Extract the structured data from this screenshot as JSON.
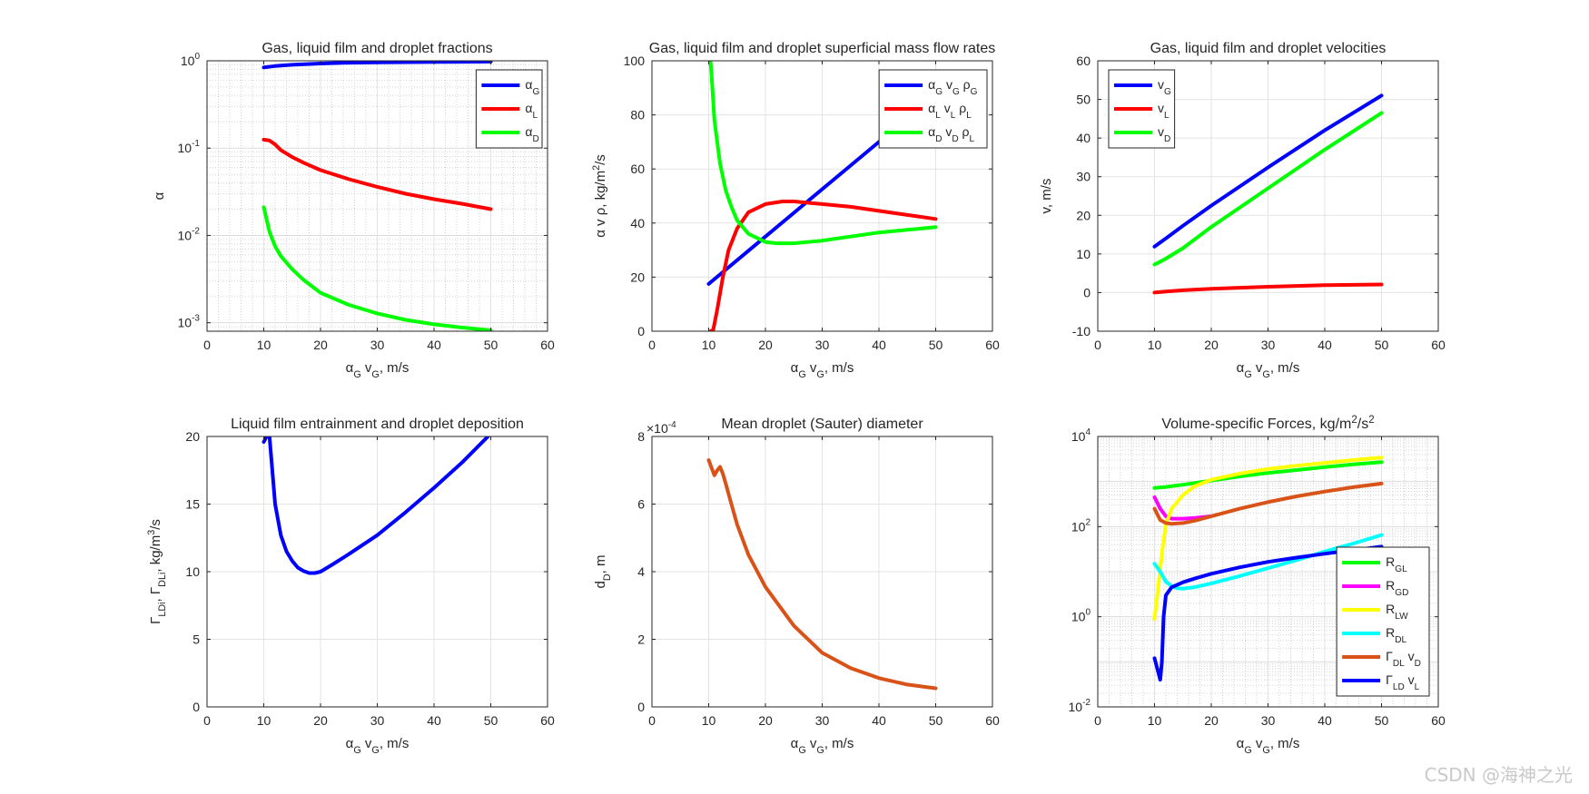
{
  "figure": {
    "watermark": "CSDN @海神之光"
  },
  "chart_data": [
    {
      "type": "line",
      "title": [
        {
          "t": "Gas, liquid film and droplet fractions"
        }
      ],
      "xlabel": [
        {
          "t": "α"
        },
        {
          "t": "G",
          "s": "sub"
        },
        {
          "t": " v"
        },
        {
          "t": "G",
          "s": "sub"
        },
        {
          "t": ", m/s"
        }
      ],
      "ylabel": [
        {
          "t": "α"
        }
      ],
      "xlim": [
        0,
        60
      ],
      "xticks": [
        0,
        10,
        20,
        30,
        40,
        50,
        60
      ],
      "ylim": [
        0.0008,
        1
      ],
      "yscale": "log",
      "yticks": [
        [
          0.001,
          "10",
          "-3"
        ],
        [
          0.01,
          "10",
          "-2"
        ],
        [
          0.1,
          "10",
          "-1"
        ],
        [
          1,
          "10",
          "0"
        ]
      ],
      "grid": "log-minor",
      "legend_position": "top-right",
      "series": [
        {
          "label": [
            {
              "t": "α"
            },
            {
              "t": "G",
              "s": "sub"
            }
          ],
          "color": "#0000ff",
          "x": [
            10,
            12,
            15,
            20,
            25,
            30,
            35,
            40,
            45,
            50
          ],
          "y": [
            0.84,
            0.87,
            0.9,
            0.93,
            0.95,
            0.96,
            0.965,
            0.97,
            0.975,
            0.978
          ]
        },
        {
          "label": [
            {
              "t": "α"
            },
            {
              "t": "L",
              "s": "sub"
            }
          ],
          "color": "#ff0000",
          "x": [
            10,
            11,
            12,
            13,
            15,
            17,
            20,
            25,
            30,
            35,
            40,
            45,
            50
          ],
          "y": [
            0.125,
            0.122,
            0.11,
            0.095,
            0.079,
            0.068,
            0.056,
            0.044,
            0.036,
            0.03,
            0.026,
            0.023,
            0.02
          ]
        },
        {
          "label": [
            {
              "t": "α"
            },
            {
              "t": "D",
              "s": "sub"
            }
          ],
          "color": "#00ff00",
          "x": [
            10,
            11,
            12,
            13,
            15,
            17,
            20,
            25,
            30,
            35,
            40,
            45,
            50
          ],
          "y": [
            0.021,
            0.011,
            0.0075,
            0.0058,
            0.0041,
            0.0031,
            0.0022,
            0.0016,
            0.00128,
            0.00108,
            0.00096,
            0.00088,
            0.00082
          ]
        }
      ]
    },
    {
      "type": "line",
      "title": [
        {
          "t": "Gas, liquid film and droplet superficial mass flow rates"
        }
      ],
      "xlabel": [
        {
          "t": "α"
        },
        {
          "t": "G",
          "s": "sub"
        },
        {
          "t": " v"
        },
        {
          "t": "G",
          "s": "sub"
        },
        {
          "t": ", m/s"
        }
      ],
      "ylabel": [
        {
          "t": "α v ρ, kg/m"
        },
        {
          "t": "2",
          "s": "sup"
        },
        {
          "t": "/s"
        }
      ],
      "xlim": [
        0,
        60
      ],
      "xticks": [
        0,
        10,
        20,
        30,
        40,
        50,
        60
      ],
      "ylim": [
        0,
        100
      ],
      "yscale": "linear",
      "yticks": [
        0,
        20,
        40,
        60,
        80,
        100
      ],
      "grid": "major",
      "legend_position": "top-right",
      "series": [
        {
          "label": [
            {
              "t": "α"
            },
            {
              "t": "G",
              "s": "sub"
            },
            {
              "t": " v"
            },
            {
              "t": "G",
              "s": "sub"
            },
            {
              "t": " ρ"
            },
            {
              "t": "G",
              "s": "sub"
            }
          ],
          "color": "#0000ff",
          "x": [
            10,
            20,
            30,
            40,
            50
          ],
          "y": [
            17.5,
            35,
            52.5,
            70,
            87.5
          ]
        },
        {
          "label": [
            {
              "t": "α"
            },
            {
              "t": "L",
              "s": "sub"
            },
            {
              "t": " v"
            },
            {
              "t": "L",
              "s": "sub"
            },
            {
              "t": " ρ"
            },
            {
              "t": "L",
              "s": "sub"
            }
          ],
          "color": "#ff0000",
          "x": [
            10.3,
            10.8,
            11.5,
            12.5,
            13.5,
            15,
            17,
            20,
            23,
            25,
            30,
            35,
            40,
            45,
            50
          ],
          "y": [
            0,
            0.5,
            8,
            20,
            30,
            38,
            44,
            47,
            48,
            48,
            47,
            46,
            44.5,
            43,
            41.5
          ]
        },
        {
          "label": [
            {
              "t": "α"
            },
            {
              "t": "D",
              "s": "sub"
            },
            {
              "t": " v"
            },
            {
              "t": "D",
              "s": "sub"
            },
            {
              "t": " ρ"
            },
            {
              "t": "L",
              "s": "sub"
            }
          ],
          "color": "#00ff00",
          "x": [
            10.3,
            10.5,
            11,
            12,
            13,
            14,
            15,
            17,
            20,
            22,
            25,
            30,
            35,
            40,
            45,
            50
          ],
          "y": [
            100,
            95,
            78,
            62,
            52,
            46,
            41,
            36,
            33,
            32.5,
            32.5,
            33.5,
            35,
            36.5,
            37.5,
            38.5
          ]
        }
      ]
    },
    {
      "type": "line",
      "title": [
        {
          "t": "Gas, liquid film and droplet velocities"
        }
      ],
      "xlabel": [
        {
          "t": "α"
        },
        {
          "t": "G",
          "s": "sub"
        },
        {
          "t": " v"
        },
        {
          "t": "G",
          "s": "sub"
        },
        {
          "t": ", m/s"
        }
      ],
      "ylabel": [
        {
          "t": "v, m/s"
        }
      ],
      "xlim": [
        0,
        60
      ],
      "xticks": [
        0,
        10,
        20,
        30,
        40,
        50,
        60
      ],
      "ylim": [
        -10,
        60
      ],
      "yscale": "linear",
      "yticks": [
        -10,
        0,
        10,
        20,
        30,
        40,
        50,
        60
      ],
      "grid": "major",
      "legend_position": "top-left",
      "series": [
        {
          "label": [
            {
              "t": "v"
            },
            {
              "t": "G",
              "s": "sub"
            }
          ],
          "color": "#0000ff",
          "x": [
            10,
            12,
            15,
            20,
            30,
            40,
            50
          ],
          "y": [
            11.9,
            14,
            17.3,
            22.5,
            32.4,
            42,
            51
          ]
        },
        {
          "label": [
            {
              "t": "v"
            },
            {
              "t": "L",
              "s": "sub"
            }
          ],
          "color": "#ff0000",
          "x": [
            10,
            12,
            15,
            20,
            30,
            40,
            50
          ],
          "y": [
            0,
            0.3,
            0.6,
            1,
            1.5,
            1.9,
            2.1
          ]
        },
        {
          "label": [
            {
              "t": "v"
            },
            {
              "t": "D",
              "s": "sub"
            }
          ],
          "color": "#00ff00",
          "x": [
            10,
            11,
            12,
            15,
            20,
            30,
            40,
            50
          ],
          "y": [
            7.3,
            8,
            8.8,
            11.5,
            17,
            27,
            37,
            46.5
          ]
        }
      ]
    },
    {
      "type": "line",
      "title": [
        {
          "t": "Liquid film entrainment and droplet deposition"
        }
      ],
      "xlabel": [
        {
          "t": "α"
        },
        {
          "t": "G",
          "s": "sub"
        },
        {
          "t": " v"
        },
        {
          "t": "G",
          "s": "sub"
        },
        {
          "t": ", m/s"
        }
      ],
      "ylabel": [
        {
          "t": "Γ"
        },
        {
          "t": "LDi",
          "s": "sub"
        },
        {
          "t": ", Γ"
        },
        {
          "t": "DLi",
          "s": "sub"
        },
        {
          "t": ", kg/m"
        },
        {
          "t": "3",
          "s": "sup"
        },
        {
          "t": "/s"
        }
      ],
      "xlim": [
        0,
        60
      ],
      "xticks": [
        0,
        10,
        20,
        30,
        40,
        50,
        60
      ],
      "ylim": [
        0,
        20
      ],
      "yscale": "linear",
      "yticks": [
        0,
        5,
        10,
        15,
        20
      ],
      "grid": "major",
      "legend_position": "none",
      "series": [
        {
          "label": [],
          "color": "#0000ff",
          "x": [
            10,
            10.5,
            11,
            11.5,
            12,
            13,
            14,
            15,
            16,
            17,
            18,
            19,
            20,
            22,
            25,
            30,
            35,
            40,
            45,
            49.5
          ],
          "y": [
            19.6,
            20,
            20,
            17.5,
            15,
            12.7,
            11.5,
            10.8,
            10.3,
            10.05,
            9.9,
            9.9,
            10,
            10.5,
            11.3,
            12.7,
            14.4,
            16.2,
            18.1,
            20
          ]
        }
      ]
    },
    {
      "type": "line",
      "title": [
        {
          "t": "Mean droplet (Sauter) diameter"
        }
      ],
      "xlabel": [
        {
          "t": "α"
        },
        {
          "t": "G",
          "s": "sub"
        },
        {
          "t": " v"
        },
        {
          "t": "G",
          "s": "sub"
        },
        {
          "t": ", m/s"
        }
      ],
      "ylabel": [
        {
          "t": "d"
        },
        {
          "t": "D",
          "s": "sub"
        },
        {
          "t": ", m"
        }
      ],
      "exponent": {
        "base": "×10",
        "power": "-4"
      },
      "xlim": [
        0,
        60
      ],
      "xticks": [
        0,
        10,
        20,
        30,
        40,
        50,
        60
      ],
      "ylim": [
        0,
        8
      ],
      "yscale": "linear",
      "yticks": [
        0,
        2,
        4,
        6,
        8
      ],
      "grid": "major",
      "legend_position": "none",
      "series": [
        {
          "label": [],
          "color": "#d95319",
          "x": [
            10,
            11,
            11.5,
            12,
            12.5,
            13,
            14,
            15,
            17,
            20,
            25,
            30,
            35,
            40,
            45,
            50
          ],
          "y": [
            7.3,
            6.85,
            7,
            7.1,
            6.9,
            6.6,
            6,
            5.4,
            4.5,
            3.55,
            2.4,
            1.6,
            1.15,
            0.85,
            0.66,
            0.55
          ]
        }
      ]
    },
    {
      "type": "line",
      "title": [
        {
          "t": "Volume-specific Forces, kg/m"
        },
        {
          "t": "2",
          "s": "sup"
        },
        {
          "t": "/s"
        },
        {
          "t": "2",
          "s": "sup"
        }
      ],
      "xlabel": [
        {
          "t": "α"
        },
        {
          "t": "G",
          "s": "sub"
        },
        {
          "t": " v"
        },
        {
          "t": "G",
          "s": "sub"
        },
        {
          "t": ", m/s"
        }
      ],
      "ylabel": [],
      "xlim": [
        0,
        60
      ],
      "xticks": [
        0,
        10,
        20,
        30,
        40,
        50,
        60
      ],
      "ylim": [
        0.01,
        10000
      ],
      "yscale": "log",
      "yticks": [
        [
          0.01,
          "10",
          "-2"
        ],
        [
          1,
          "10",
          "0"
        ],
        [
          100,
          "10",
          "2"
        ],
        [
          10000,
          "10",
          "4"
        ]
      ],
      "grid": "log-minor",
      "legend_position": "bottom-right",
      "series": [
        {
          "label": [
            {
              "t": "R"
            },
            {
              "t": "GL",
              "s": "sub"
            }
          ],
          "color": "#00ff00",
          "x": [
            10,
            12,
            15,
            20,
            25,
            30,
            35,
            40,
            45,
            50
          ],
          "y": [
            720,
            760,
            850,
            1050,
            1300,
            1550,
            1800,
            2100,
            2400,
            2700
          ]
        },
        {
          "label": [
            {
              "t": "R"
            },
            {
              "t": "GD",
              "s": "sub"
            }
          ],
          "color": "#ff00ff",
          "x": [
            10,
            11,
            12,
            13,
            15,
            17,
            20
          ],
          "y": [
            450,
            250,
            170,
            150,
            150,
            155,
            170
          ]
        },
        {
          "label": [
            {
              "t": "R"
            },
            {
              "t": "LW",
              "s": "sub"
            }
          ],
          "color": "#ffff00",
          "x": [
            10,
            10.5,
            11,
            11.5,
            12,
            13,
            15,
            17,
            20,
            25,
            30,
            35,
            40,
            45,
            50
          ],
          "y": [
            0.9,
            3,
            12,
            40,
            110,
            250,
            500,
            780,
            1100,
            1500,
            1900,
            2250,
            2600,
            3000,
            3400
          ]
        },
        {
          "label": [
            {
              "t": "R"
            },
            {
              "t": "DL",
              "s": "sub"
            }
          ],
          "color": "#00ffff",
          "x": [
            10,
            11,
            12,
            13,
            14,
            15,
            17,
            20,
            25,
            30,
            35,
            40,
            45,
            50
          ],
          "y": [
            15,
            10,
            6,
            4.8,
            4.3,
            4.2,
            4.5,
            5.5,
            8,
            12,
            18,
            28,
            42,
            65
          ]
        },
        {
          "label": [
            {
              "t": "Γ"
            },
            {
              "t": "DL",
              "s": "sub"
            },
            {
              "t": " v"
            },
            {
              "t": "D",
              "s": "sub"
            }
          ],
          "color": "#d95319",
          "x": [
            10,
            11,
            12,
            13,
            15,
            17,
            20,
            25,
            30,
            35,
            40,
            45,
            50
          ],
          "y": [
            250,
            140,
            120,
            115,
            120,
            135,
            170,
            250,
            350,
            470,
            600,
            750,
            900
          ]
        },
        {
          "label": [
            {
              "t": "Γ"
            },
            {
              "t": "LD",
              "s": "sub"
            },
            {
              "t": " v"
            },
            {
              "t": "L",
              "s": "sub"
            }
          ],
          "color": "#0000ff",
          "x": [
            10,
            10.5,
            11,
            11.3,
            11.6,
            12,
            13,
            15,
            17,
            20,
            25,
            30,
            35,
            40,
            45,
            50
          ],
          "y": [
            0.12,
            0.07,
            0.04,
            0.1,
            1,
            3,
            4.5,
            5.8,
            7,
            9,
            12.5,
            16.5,
            20.5,
            25,
            30,
            36
          ]
        }
      ]
    }
  ]
}
